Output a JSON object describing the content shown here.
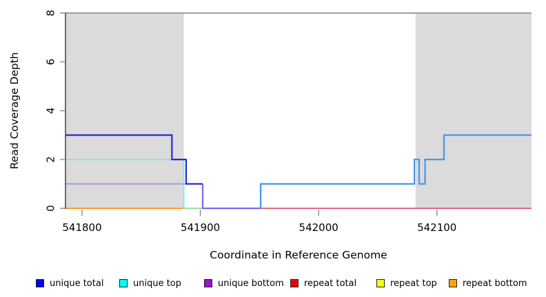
{
  "figure": {
    "xlabel": "Coordinate in Reference Genome",
    "ylabel": "Read Coverage Depth"
  },
  "chart_data": {
    "type": "line",
    "subtype": "step-coverage",
    "title": "",
    "xlabel": "Coordinate in Reference Genome",
    "ylabel": "Read Coverage Depth",
    "xlim": [
      541786,
      542180
    ],
    "ylim": [
      0,
      8
    ],
    "xticks": [
      541800,
      541900,
      542000,
      542100
    ],
    "yticks": [
      0,
      2,
      4,
      6,
      8
    ],
    "grid": false,
    "legend_position": "bottom",
    "shade_color": "#DBDBDB",
    "shaded_regions": [
      {
        "x0": 541786,
        "x1": 541886
      },
      {
        "x0": 542082,
        "x1": 542180
      }
    ],
    "axis_color": "#333333",
    "tick_color": "#8A8A8A",
    "series": [
      {
        "name": "top-boundary-line",
        "color": "#9E9E9E",
        "width": 2,
        "points": [
          [
            541786,
            8
          ],
          [
            542180,
            8
          ]
        ]
      },
      {
        "name": "repeat-total",
        "color": "#DE5470",
        "width": 1.8,
        "points": [
          [
            541951,
            0
          ],
          [
            542180,
            0
          ]
        ]
      },
      {
        "name": "unique-top-zero-overlap",
        "color": "#8FD992",
        "width": 1.8,
        "points": [
          [
            541886,
            0
          ],
          [
            541902,
            0
          ]
        ]
      },
      {
        "name": "repeat-bottom",
        "color": "#FF9D2F",
        "width": 2,
        "points": [
          [
            541786,
            0
          ],
          [
            541886,
            0
          ]
        ]
      },
      {
        "name": "unique-bottom",
        "color": "#A98BDC",
        "width": 1.8,
        "points": [
          [
            541786,
            1
          ],
          [
            541888,
            1
          ]
        ]
      },
      {
        "name": "unique-top",
        "color": "#7DE9E9",
        "width": 1.8,
        "points": [
          [
            541786,
            2
          ],
          [
            541886,
            2
          ],
          [
            541886,
            0
          ]
        ]
      },
      {
        "name": "unique-total-zero",
        "color": "#7768EF",
        "width": 2.2,
        "points": [
          [
            541902,
            1
          ],
          [
            541902,
            0
          ],
          [
            541951,
            0
          ]
        ]
      },
      {
        "name": "unique-total-right",
        "color": "#4595EC",
        "width": 2.2,
        "points": [
          [
            541951,
            0
          ],
          [
            541951,
            1
          ],
          [
            542081,
            1
          ],
          [
            542081,
            2
          ],
          [
            542085,
            2
          ],
          [
            542085,
            1
          ],
          [
            542090,
            1
          ],
          [
            542090,
            2
          ],
          [
            542106,
            2
          ],
          [
            542106,
            3
          ],
          [
            542180,
            3
          ]
        ]
      },
      {
        "name": "unique-total",
        "color": "#2B26CE",
        "width": 2.2,
        "points": [
          [
            541786,
            3
          ],
          [
            541876,
            3
          ],
          [
            541876,
            2
          ],
          [
            541888,
            2
          ],
          [
            541888,
            1
          ],
          [
            541902,
            1
          ]
        ]
      }
    ],
    "legend": [
      {
        "label": "unique total",
        "color": "#0000F0"
      },
      {
        "label": "unique top",
        "color": "#00FFFF"
      },
      {
        "label": "unique bottom",
        "color": "#9F10D0"
      },
      {
        "label": "repeat total",
        "color": "#EE0000"
      },
      {
        "label": "repeat top",
        "color": "#FFFF00"
      },
      {
        "label": "repeat bottom",
        "color": "#FFA500"
      }
    ]
  }
}
